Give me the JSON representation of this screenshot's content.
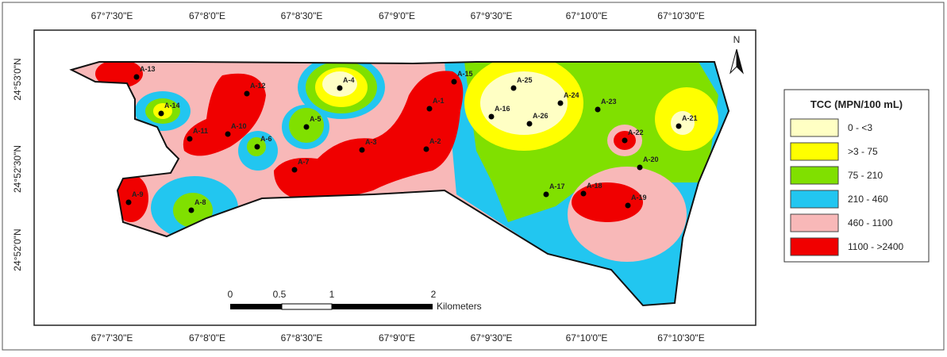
{
  "map": {
    "top_axis_labels": [
      "67°7'30\"E",
      "67°8'0\"E",
      "67°8'30\"E",
      "67°9'0\"E",
      "67°9'30\"E",
      "67°10'0\"E",
      "67°10'30\"E"
    ],
    "bottom_axis_labels": [
      "67°7'30\"E",
      "67°8'0\"E",
      "67°8'30\"E",
      "67°9'0\"E",
      "67°9'30\"E",
      "67°10'0\"E",
      "67°10'30\"E"
    ],
    "left_axis_labels": [
      "24°53'0\"N",
      "24°52'30\"N",
      "24°52'0\"N"
    ],
    "north": "N",
    "stations": [
      "A-13",
      "A-14",
      "A-12",
      "A-11",
      "A-10",
      "A-6",
      "A-5",
      "A-4",
      "A-7",
      "A-3",
      "A-2",
      "A-1",
      "A-15",
      "A-9",
      "A-8",
      "A-25",
      "A-24",
      "A-16",
      "A-26",
      "A-23",
      "A-21",
      "A-22",
      "A-20",
      "A-17",
      "A-18",
      "A-19"
    ],
    "scale_bar": {
      "ticks": [
        "0",
        "0.5",
        "1",
        "2"
      ],
      "unit": "Kilometers"
    },
    "legend": {
      "title": "TCC (MPN/100 mL)",
      "classes": [
        {
          "label": "0 - <3",
          "color": "#ffffc4"
        },
        {
          "label": ">3 - 75",
          "color": "#ffff00"
        },
        {
          "label": "75 - 210",
          "color": "#80e000"
        },
        {
          "label": "210 - 460",
          "color": "#22c6f0"
        },
        {
          "label": "460 - 1100",
          "color": "#f8b8b8"
        },
        {
          "label": "1100 - >2400",
          "color": "#f00000"
        }
      ]
    }
  }
}
